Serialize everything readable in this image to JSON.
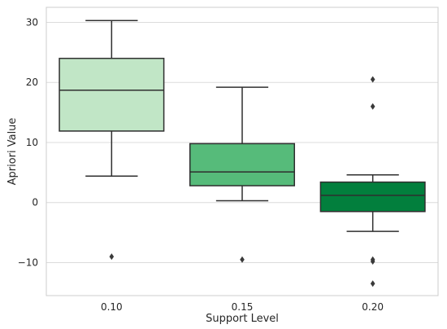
{
  "chart_data": {
    "type": "box",
    "xlabel": "Support Level",
    "ylabel": "Apriori Value",
    "categories": [
      "0.10",
      "0.15",
      "0.20"
    ],
    "ylim": [
      -15.5,
      32.5
    ],
    "yticks": [
      -10,
      0,
      10,
      20,
      30
    ],
    "ytick_labels": [
      "−10",
      "0",
      "10",
      "20",
      "30"
    ],
    "grid": "horizontal",
    "boxes": [
      {
        "category": "0.10",
        "whisker_low": 4.4,
        "q1": 11.9,
        "median": 18.7,
        "q3": 24.0,
        "whisker_high": 30.3,
        "outliers": [
          -9.0
        ],
        "color": "#c1e6c6"
      },
      {
        "category": "0.15",
        "whisker_low": 0.3,
        "q1": 2.8,
        "median": 5.1,
        "q3": 9.8,
        "whisker_high": 19.2,
        "outliers": [
          -9.5
        ],
        "color": "#56bb7a"
      },
      {
        "category": "0.20",
        "whisker_low": -4.8,
        "q1": -1.5,
        "median": 1.2,
        "q3": 3.4,
        "whisker_high": 4.6,
        "outliers": [
          20.5,
          16.0,
          -9.5,
          -9.8,
          -13.5
        ],
        "color": "#027f3d"
      }
    ],
    "line_color": "#2f2f2f",
    "grid_color": "#dcdcdc",
    "frame_color": "#cccccc"
  }
}
